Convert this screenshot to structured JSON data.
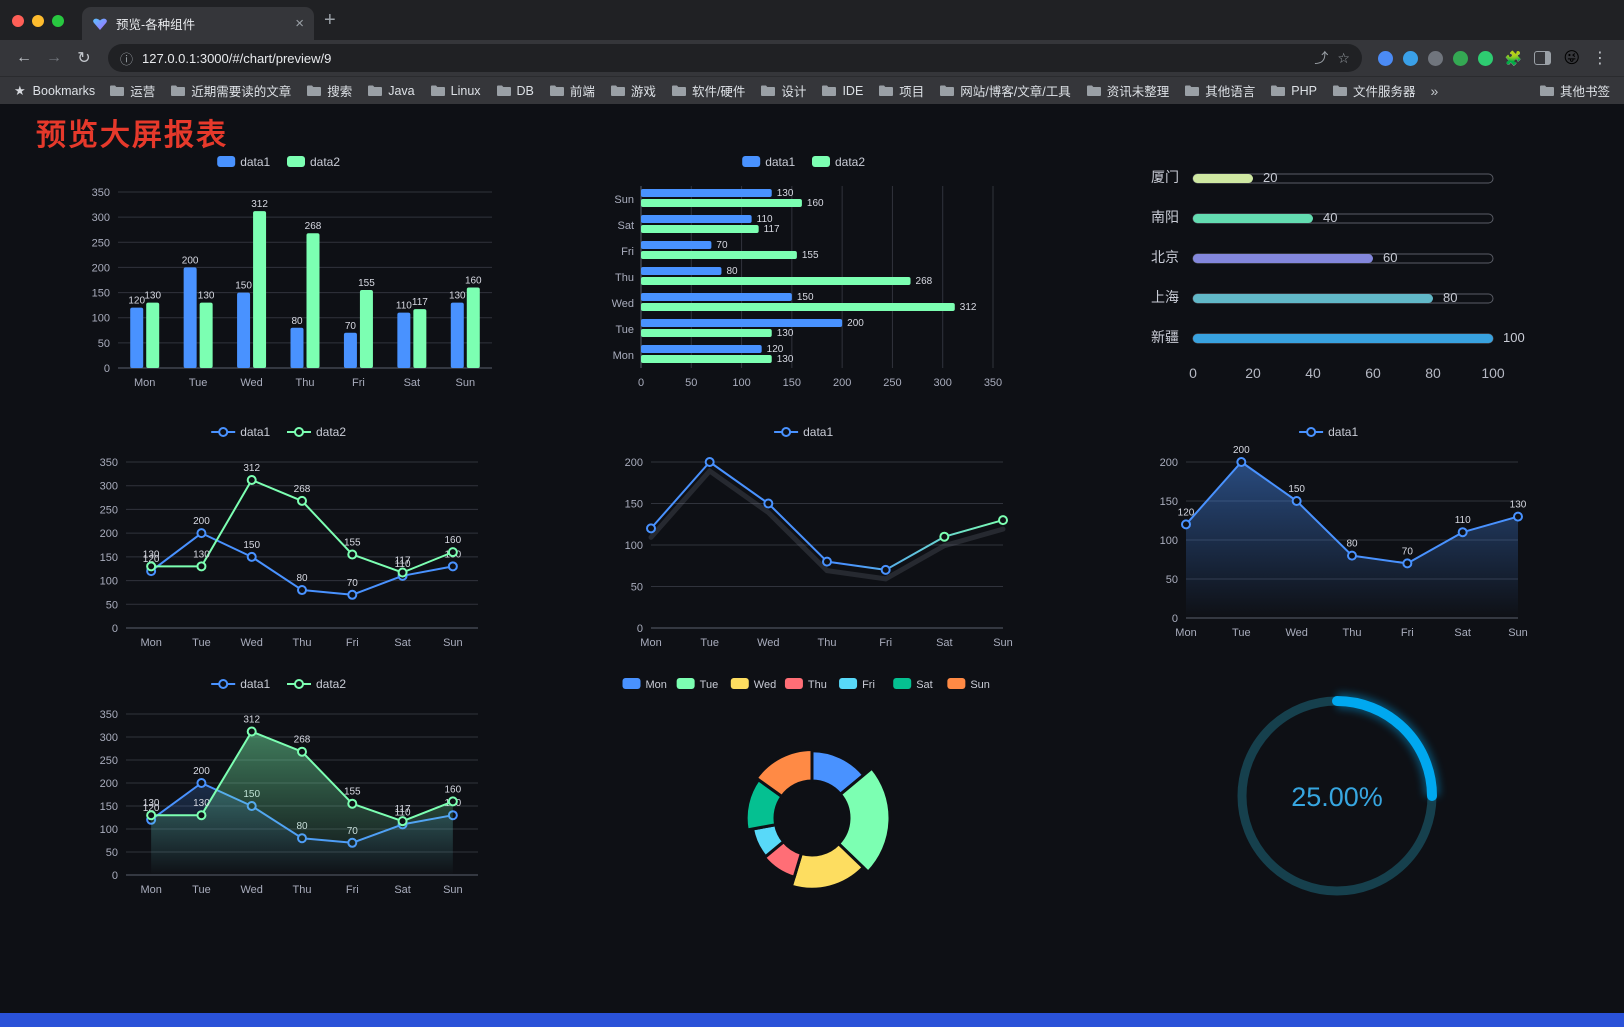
{
  "browser": {
    "tab_title": "预览-各种组件",
    "url": "127.0.0.1:3000/#/chart/preview/9",
    "traffic_lights": [
      "#ff5f57",
      "#febc2e",
      "#28c840"
    ],
    "icons": {
      "back": "←",
      "forward": "→",
      "reload": "↻",
      "info": "ⓘ",
      "share": "⤴",
      "star": "☆",
      "close": "×",
      "plus": "+",
      "puzzle": "🧩",
      "avatar": "😜",
      "menu": "⋮",
      "bm_star": "★",
      "overflow": "»"
    },
    "extension_colors": [
      "#4b8bf5",
      "#3aa0e8",
      "#70757d",
      "#34a853",
      "#2ecc71"
    ],
    "bookmarks_label": "Bookmarks",
    "bookmarks": [
      "运营",
      "近期需要读的文章",
      "搜索",
      "Java",
      "Linux",
      "DB",
      "前端",
      "游戏",
      "软件/硬件",
      "设计",
      "IDE",
      "项目",
      "网站/博客/文章/工具",
      "资讯未整理",
      "其他语言",
      "PHP",
      "文件服务器"
    ],
    "other_bookmarks": "其他书签"
  },
  "page": {
    "title": "预览大屏报表",
    "title_color": "#e6392b",
    "background": "#0e1015",
    "footer_color": "#2a52d8"
  },
  "chart_data": [
    {
      "id": "grouped-bar",
      "type": "bar",
      "categories": [
        "Mon",
        "Tue",
        "Wed",
        "Thu",
        "Fri",
        "Sat",
        "Sun"
      ],
      "series": [
        {
          "name": "data1",
          "color": "#4992ff",
          "values": [
            120,
            200,
            150,
            80,
            70,
            110,
            130
          ]
        },
        {
          "name": "data2",
          "color": "#7cffb2",
          "values": [
            130,
            130,
            312,
            268,
            155,
            117,
            160
          ]
        }
      ],
      "ylim": [
        0,
        350
      ],
      "ytick": 50,
      "value_labels": true,
      "legend": true
    },
    {
      "id": "horizontal-bar",
      "type": "bar-horizontal",
      "categories": [
        "Mon",
        "Tue",
        "Wed",
        "Thu",
        "Fri",
        "Sat",
        "Sun"
      ],
      "display_top_to_bottom": [
        "Sun",
        "Sat",
        "Fri",
        "Thu",
        "Wed",
        "Tue",
        "Mon"
      ],
      "series": [
        {
          "name": "data1",
          "color": "#4992ff",
          "values": [
            120,
            200,
            150,
            80,
            70,
            110,
            130
          ]
        },
        {
          "name": "data2",
          "color": "#7cffb2",
          "values": [
            130,
            130,
            312,
            268,
            155,
            117,
            160
          ]
        }
      ],
      "xlim": [
        0,
        350
      ],
      "xtick": 50,
      "value_labels": true,
      "legend": true
    },
    {
      "id": "city-progress",
      "type": "progress",
      "rows": [
        {
          "label": "厦门",
          "value": 20,
          "color": "#cfe8a2"
        },
        {
          "label": "南阳",
          "value": 40,
          "color": "#63dcb1"
        },
        {
          "label": "北京",
          "value": 60,
          "color": "#8387dc"
        },
        {
          "label": "上海",
          "value": 80,
          "color": "#61b8c8"
        },
        {
          "label": "新疆",
          "value": 100,
          "color": "#38a2df"
        }
      ],
      "xlim": [
        0,
        100
      ],
      "xticks": [
        0,
        20,
        40,
        60,
        80,
        100
      ]
    },
    {
      "id": "line-two-series",
      "type": "line",
      "categories": [
        "Mon",
        "Tue",
        "Wed",
        "Thu",
        "Fri",
        "Sat",
        "Sun"
      ],
      "series": [
        {
          "name": "data1",
          "color": "#4992ff",
          "values": [
            120,
            200,
            150,
            80,
            70,
            110,
            130
          ]
        },
        {
          "name": "data2",
          "color": "#7cffb2",
          "values": [
            130,
            130,
            312,
            268,
            155,
            117,
            160
          ]
        }
      ],
      "ylim": [
        0,
        350
      ],
      "ytick": 50,
      "value_labels": true,
      "x_mode": "slot",
      "legend": true
    },
    {
      "id": "line-gradient",
      "type": "line",
      "categories": [
        "Mon",
        "Tue",
        "Wed",
        "Thu",
        "Fri",
        "Sat",
        "Sun"
      ],
      "series": [
        {
          "name": "data1",
          "color": "#4992ff",
          "color2": "#7cffb2",
          "gradient": true,
          "shadow": true,
          "values": [
            120,
            200,
            150,
            80,
            70,
            110,
            130
          ]
        }
      ],
      "ylim": [
        0,
        200
      ],
      "ytick": 50,
      "value_labels": false,
      "x_mode": "edge",
      "legend": true
    },
    {
      "id": "line-area",
      "type": "line",
      "categories": [
        "Mon",
        "Tue",
        "Wed",
        "Thu",
        "Fri",
        "Sat",
        "Sun"
      ],
      "series": [
        {
          "name": "data1",
          "color": "#4992ff",
          "area": 0.45,
          "values": [
            120,
            200,
            150,
            80,
            70,
            110,
            130
          ]
        }
      ],
      "ylim": [
        0,
        200
      ],
      "ytick": 50,
      "value_labels": true,
      "x_mode": "edge",
      "legend": true
    },
    {
      "id": "line-area-two",
      "type": "line",
      "categories": [
        "Mon",
        "Tue",
        "Wed",
        "Thu",
        "Fri",
        "Sat",
        "Sun"
      ],
      "series": [
        {
          "name": "data1",
          "color": "#4992ff",
          "area": 0.22,
          "values": [
            120,
            200,
            150,
            80,
            70,
            110,
            130
          ]
        },
        {
          "name": "data2",
          "color": "#7cffb2",
          "area": 0.45,
          "values": [
            130,
            130,
            312,
            268,
            155,
            117,
            160
          ]
        }
      ],
      "ylim": [
        0,
        350
      ],
      "ytick": 50,
      "value_labels": true,
      "x_mode": "slot",
      "legend": true
    },
    {
      "id": "rose-donut",
      "type": "pie",
      "categories": [
        "Mon",
        "Tue",
        "Wed",
        "Thu",
        "Fri",
        "Sat",
        "Sun"
      ],
      "values": [
        120,
        200,
        150,
        80,
        70,
        110,
        130
      ],
      "colors": [
        "#4992ff",
        "#7cffb2",
        "#fddd60",
        "#ff6e76",
        "#58d9f9",
        "#05c091",
        "#ff8a45"
      ],
      "rose": true,
      "donut": true,
      "legend": true
    },
    {
      "id": "percent-gauge",
      "type": "gauge",
      "value": 25,
      "max": 100,
      "label": "25.00%",
      "progress_color": "#00a8f0",
      "track_color": "#16404d",
      "text_color": "#37a6e0"
    }
  ]
}
